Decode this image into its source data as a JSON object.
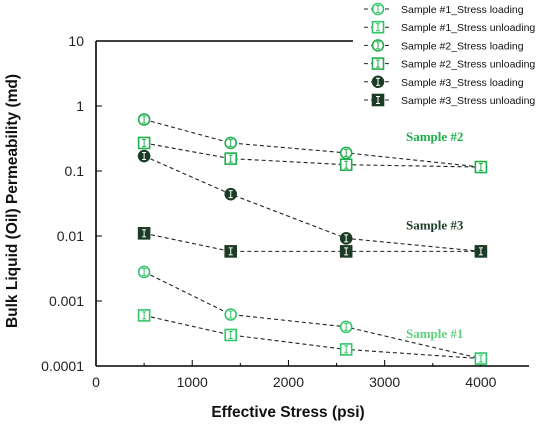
{
  "chart_data": {
    "type": "scatter",
    "xlabel": "Effective Stress (psi)",
    "ylabel": "Bulk Liquid (Oil) Permeability (md)",
    "xlim": [
      0,
      4500
    ],
    "ylim": [
      0.0001,
      10
    ],
    "y_scale": "log",
    "x_ticks": [
      "0",
      "1000",
      "2000",
      "3000",
      "4000"
    ],
    "y_ticks": [
      "0.0001",
      "0.001",
      "0.01",
      "0.1",
      "1",
      "10"
    ],
    "grid": false,
    "legend_position": "top-right, outside plot",
    "series": [
      {
        "name": "Sample #1_Stress loading",
        "marker": "circle",
        "color": "#33c46a",
        "fill": "#ffffff",
        "line": "dashed",
        "x": [
          500,
          1400,
          2600,
          4000
        ],
        "y": [
          0.0028,
          0.00062,
          0.0004,
          0.00013
        ]
      },
      {
        "name": "Sample #1_Stress unloading",
        "marker": "square",
        "color": "#33c46a",
        "fill": "#ffffff",
        "line": "dashed",
        "x": [
          500,
          1400,
          2600,
          4000
        ],
        "y": [
          0.0006,
          0.0003,
          0.00018,
          0.00013
        ]
      },
      {
        "name": "Sample #2_Stress loading",
        "marker": "circle",
        "color": "#1fae4d",
        "fill": "#ffffff",
        "line": "dashed",
        "x": [
          500,
          1400,
          2600,
          4000
        ],
        "y": [
          0.62,
          0.27,
          0.19,
          0.115
        ]
      },
      {
        "name": "Sample #2_Stress unloading",
        "marker": "square",
        "color": "#1fae4d",
        "fill": "#ffffff",
        "line": "dashed",
        "x": [
          500,
          1400,
          2600,
          4000
        ],
        "y": [
          0.27,
          0.155,
          0.125,
          0.115
        ]
      },
      {
        "name": "Sample #3_Stress loading",
        "marker": "circle",
        "color": "#1c3d25",
        "fill": "#1c3d25",
        "line": "dashed",
        "x": [
          500,
          1400,
          2600,
          4000
        ],
        "y": [
          0.17,
          0.044,
          0.0092,
          0.0058
        ]
      },
      {
        "name": "Sample #3_Stress unloading",
        "marker": "square",
        "color": "#1c3d25",
        "fill": "#1c3d25",
        "line": "dashed",
        "x": [
          500,
          1400,
          2600,
          4000
        ],
        "y": [
          0.011,
          0.0058,
          0.0058,
          0.0058
        ]
      }
    ],
    "annotations": [
      {
        "text": "Sample #2",
        "x": 3520,
        "y": 0.29,
        "color": "#1fae4d"
      },
      {
        "text": "Sample #3",
        "x": 3520,
        "y": 0.0125,
        "color": "#1c3d25"
      },
      {
        "text": "Sample #1",
        "x": 3520,
        "y": 0.00027,
        "color": "#5fcf7e"
      }
    ]
  }
}
